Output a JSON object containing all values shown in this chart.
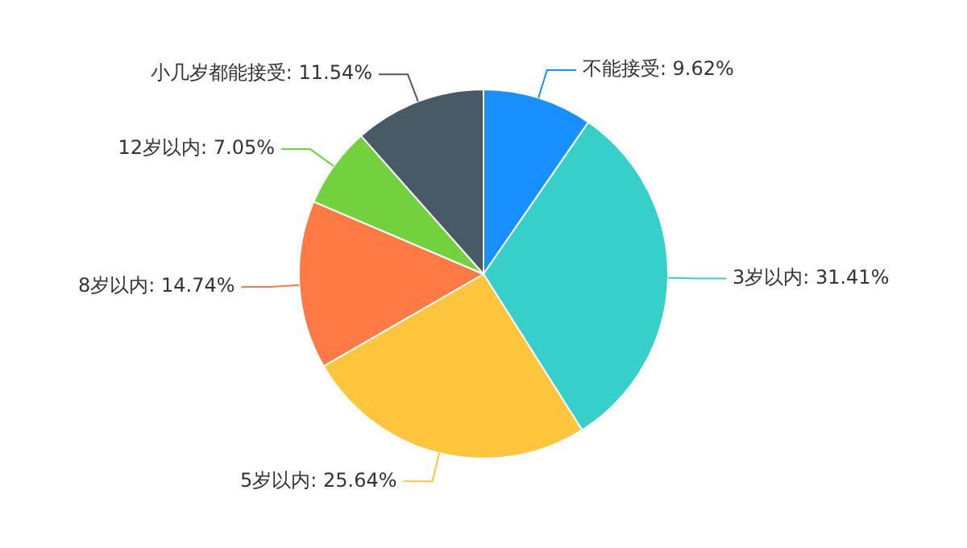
{
  "chart_data": {
    "type": "pie",
    "categories": [
      "不能接受",
      "3岁以内",
      "5岁以内",
      "8岁以内",
      "12岁以内",
      "小几岁都能接受"
    ],
    "values": [
      9.62,
      31.41,
      25.64,
      14.74,
      7.05,
      11.54
    ],
    "colors": [
      "#1890ff",
      "#36cfc9",
      "#ffc53d",
      "#ff7a45",
      "#73d13d",
      "#475a66"
    ],
    "value_labels": [
      "9.62%",
      "31.41%",
      "25.64%",
      "14.74%",
      "7.05%",
      "11.54%"
    ],
    "legend": false
  }
}
